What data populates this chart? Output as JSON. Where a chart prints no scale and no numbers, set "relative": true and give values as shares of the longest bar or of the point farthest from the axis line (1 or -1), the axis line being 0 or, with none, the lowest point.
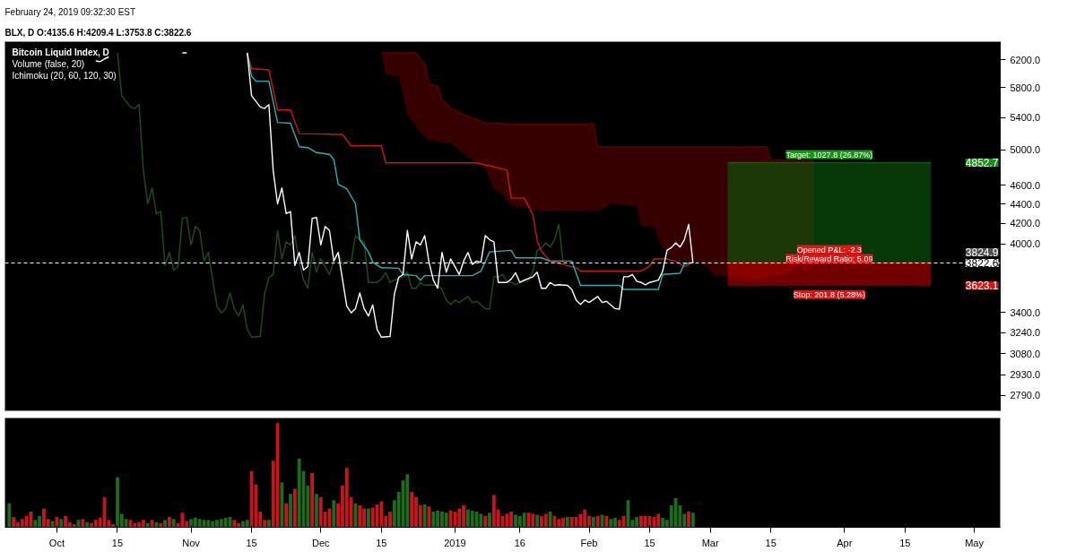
{
  "chart_data": [
    {
      "type": "line",
      "title": "Bitcoin Liquid Index, D",
      "subtitle": "BLX, D O:4135.6 H:4209.4 L:3753.8 C:3822.6",
      "annotations": [
        "February 24, 2019 09:32:30 EST",
        "Volume (false, 20)",
        "Ichimoku (20, 60, 120, 30)",
        "Target: 1027.8 (26.87%)",
        "Opened P&L: -2.3",
        "Risk/Reward Ratio: 5.09",
        "Stop: 201.8 (5.28%)",
        "4852.7",
        "3824.9",
        "3623.1"
      ],
      "xlim": [
        "2018-09-19",
        "2019-05-07"
      ],
      "ylim": [
        2690,
        6470
      ],
      "log": true,
      "tick_labels": "y",
      "yticks": [
        {
          "value": 2790,
          "label": "2790.0"
        },
        {
          "value": 2930,
          "label": "2930.0"
        },
        {
          "value": 3080,
          "label": "3080.0"
        },
        {
          "value": 3240,
          "label": "3240.0"
        },
        {
          "value": 3400,
          "label": "3400.0"
        },
        {
          "value": 4000,
          "label": "4000.0"
        },
        {
          "value": 4200,
          "label": "4200.0"
        },
        {
          "value": 4400,
          "label": "4400.0"
        },
        {
          "value": 4600,
          "label": "4600.0"
        },
        {
          "value": 5000,
          "label": "5000.0"
        },
        {
          "value": 5400,
          "label": "5400.0"
        },
        {
          "value": 5800,
          "label": "5800.0"
        },
        {
          "value": 6200,
          "label": "6200.0"
        }
      ],
      "ref_lines": [
        {
          "axis": "y",
          "value": 3822.6,
          "label": "3822.6",
          "color": "#ffffff",
          "line_style": "dashed"
        }
      ],
      "series": [
        {
          "type": "line",
          "color": "#5a0000",
          "upper": [
            6300,
            6300,
            6300,
            6300,
            6300,
            6200,
            6150,
            5850,
            5820,
            5640,
            5530,
            5440,
            5330,
            5330,
            5330,
            5320,
            5320,
            5320,
            5320,
            5040,
            5040,
            5040,
            5040,
            5040,
            5040,
            5040,
            5040,
            5040,
            5040,
            5040,
            5040,
            5040,
            5040,
            5040,
            4880,
            4880,
            4880,
            4880,
            4880
          ],
          "x": [
            "2018-12-15",
            "2018-12-16",
            "2018-12-19",
            "2018-12-21",
            "2018-12-23",
            "2018-12-24",
            "2018-12-25",
            "2018-12-26",
            "2018-12-28",
            "2018-12-29",
            "2018-12-31",
            "2019-01-03",
            "2019-01-08",
            "2019-01-10",
            "2019-01-12",
            "2019-01-14",
            "2019-01-18",
            "2019-01-21",
            "2019-02-02",
            "2019-02-03",
            "2019-02-05",
            "2019-02-06",
            "2019-02-12",
            "2019-02-13",
            "2019-02-16",
            "2019-02-18",
            "2019-02-20",
            "2019-02-22",
            "2019-02-26",
            "2019-02-28",
            "2019-03-02",
            "2019-03-06",
            "2019-03-12",
            "2019-03-14",
            "2019-03-15",
            "2019-03-18",
            "2019-03-21",
            "2019-03-24",
            "2019-03-25"
          ],
          "values": [
            6300,
            6300,
            6300,
            6300,
            6300,
            6200,
            6150,
            5850,
            5820,
            5640,
            5530,
            5440,
            5330,
            5330,
            5330,
            5320,
            5320,
            5320,
            5320,
            5040,
            5040,
            5040,
            5040,
            5040,
            5040,
            5040,
            5040,
            5040,
            5040,
            5040,
            5040,
            5040,
            5040,
            5040,
            4880,
            4880,
            4880,
            4880,
            4880
          ],
          "lower": [
            6300,
            5980,
            5960,
            5440,
            5300,
            5220,
            5160,
            5120,
            5100,
            5095,
            5090,
            4960,
            4780,
            4560,
            4500,
            4380,
            4360,
            4320,
            4330,
            4330,
            4360,
            4400,
            4380,
            4170,
            4170,
            3960,
            3870,
            3840,
            3840,
            3790,
            3710,
            3700,
            3680,
            3690,
            3710,
            3720,
            3790,
            3770,
            3800
          ]
        },
        {
          "type": "line",
          "color": "#0b5e0b",
          "x": [
            "2019-03-05",
            "2019-04-21"
          ],
          "values": [
            4852.7,
            4852.7
          ],
          "lower": [
            3822.6,
            3822.6
          ],
          "upper": [
            4852.7,
            4852.7
          ]
        },
        {
          "type": "line",
          "color": "#c00000",
          "x": [
            "2019-03-05",
            "2019-04-21"
          ],
          "values": [
            3822.6,
            3822.6
          ],
          "lower": [
            3623.1,
            3623.1
          ],
          "upper": [
            3822.6,
            3822.6
          ]
        },
        {
          "type": "line",
          "color": "#1f4f1f",
          "x": [
            "2018-10-15",
            "2018-10-16",
            "2018-10-18",
            "2018-10-19",
            "2018-10-20",
            "2018-10-21",
            "2018-10-22",
            "2018-10-23",
            "2018-10-24",
            "2018-10-25",
            "2018-10-26",
            "2018-10-27",
            "2018-10-28",
            "2018-10-29",
            "2018-10-30",
            "2018-10-31",
            "2018-11-01",
            "2018-11-02",
            "2018-11-03",
            "2018-11-04",
            "2018-11-05",
            "2018-11-07",
            "2018-11-08",
            "2018-11-09",
            "2018-11-10",
            "2018-11-11",
            "2018-11-12",
            "2018-11-13",
            "2018-11-14",
            "2018-11-15",
            "2018-11-17",
            "2018-11-18",
            "2018-11-19",
            "2018-11-20",
            "2018-11-21",
            "2018-11-22",
            "2018-11-23",
            "2018-11-24",
            "2018-11-25",
            "2018-11-26",
            "2018-11-27",
            "2018-11-28",
            "2018-11-29",
            "2018-11-30",
            "2018-12-01",
            "2018-12-03",
            "2018-12-04",
            "2018-12-05",
            "2018-12-06",
            "2018-12-07",
            "2018-12-08",
            "2018-12-09",
            "2018-12-10",
            "2018-12-11",
            "2018-12-12",
            "2018-12-14",
            "2018-12-15",
            "2018-12-16",
            "2018-12-17",
            "2018-12-18",
            "2018-12-20",
            "2018-12-21",
            "2018-12-22",
            "2018-12-23",
            "2018-12-24",
            "2018-12-25",
            "2018-12-26",
            "2018-12-28",
            "2018-12-29",
            "2018-12-30",
            "2018-12-31",
            "2019-01-01",
            "2019-01-02",
            "2019-01-04",
            "2019-01-05",
            "2019-01-06",
            "2019-01-08",
            "2019-01-09",
            "2019-01-10",
            "2019-01-11",
            "2019-01-12",
            "2019-01-13",
            "2019-01-14",
            "2019-01-15",
            "2019-01-16",
            "2019-01-18",
            "2019-01-19",
            "2019-01-20",
            "2019-01-21",
            "2019-01-22",
            "2019-01-23",
            "2019-01-24",
            "2019-01-25",
            "2019-01-26"
          ],
          "values": [
            6300,
            5690,
            5540,
            5520,
            5570,
            4760,
            4400,
            4570,
            4300,
            4320,
            3800,
            3920,
            3760,
            3790,
            4250,
            4260,
            3990,
            4170,
            4130,
            3840,
            3920,
            3450,
            3395,
            3430,
            3560,
            3430,
            3370,
            3460,
            3265,
            3205,
            3210,
            3550,
            3695,
            3720,
            4130,
            3860,
            4020,
            3990,
            4080,
            3830,
            3670,
            3600,
            3920,
            3740,
            3860,
            3720,
            3840,
            3920,
            3810,
            3840,
            3830,
            4080,
            4040,
            4020,
            3650,
            3650,
            3680,
            3735,
            3650,
            3670,
            3700,
            3740,
            3600,
            3600,
            3650,
            3625,
            3630,
            3625,
            3590,
            3500,
            3465,
            3500,
            3480,
            3530,
            3480,
            3490,
            3430,
            3425,
            3700,
            3700,
            3720,
            3660,
            3650,
            3630,
            3650,
            3670,
            3750,
            3940,
            3965,
            4010,
            3970,
            4040,
            4190,
            3823
          ]
        },
        {
          "type": "line",
          "color": "#c8161c",
          "x": [
            "2018-11-14",
            "2018-11-15",
            "2018-11-19",
            "2018-11-21",
            "2018-11-24",
            "2018-11-26",
            "2018-12-06",
            "2018-12-08",
            "2018-12-15",
            "2018-12-16",
            "2019-01-06",
            "2019-01-13",
            "2019-01-14",
            "2019-01-17",
            "2019-01-19",
            "2019-01-20",
            "2019-01-21",
            "2019-01-23",
            "2019-01-29",
            "2019-01-30",
            "2019-02-13",
            "2019-02-15",
            "2019-02-16",
            "2019-02-19",
            "2019-02-21",
            "2019-02-23",
            "2019-02-25"
          ],
          "values": [
            6300,
            6070,
            6050,
            5500,
            5500,
            5200,
            5190,
            5050,
            5050,
            4850,
            4850,
            4770,
            4460,
            4460,
            4290,
            4030,
            3930,
            3840,
            3780,
            3750,
            3750,
            3795,
            3860,
            3860,
            3840,
            3790,
            3830
          ]
        },
        {
          "type": "line",
          "color": "#2ab0b0",
          "x": [
            "2018-11-14",
            "2018-11-15",
            "2018-11-16",
            "2018-11-19",
            "2018-11-21",
            "2018-11-24",
            "2018-11-26",
            "2018-11-28",
            "2018-11-30",
            "2018-12-03",
            "2018-12-04",
            "2018-12-05",
            "2018-12-07",
            "2018-12-09",
            "2018-12-10",
            "2018-12-12",
            "2018-12-13",
            "2018-12-15",
            "2018-12-19",
            "2018-12-20",
            "2018-12-23",
            "2018-12-24",
            "2018-12-25",
            "2019-01-05",
            "2019-01-07",
            "2019-01-09",
            "2019-01-14",
            "2019-01-15",
            "2019-01-21",
            "2019-01-23",
            "2019-01-28",
            "2019-01-30",
            "2019-02-08",
            "2019-02-09",
            "2019-02-17",
            "2019-02-18",
            "2019-02-22",
            "2019-02-23",
            "2019-02-25"
          ],
          "values": [
            6300,
            5960,
            5890,
            5890,
            5340,
            5330,
            5040,
            5030,
            4970,
            4950,
            4890,
            4610,
            4560,
            4400,
            4040,
            3925,
            3830,
            3780,
            3775,
            3720,
            3710,
            3670,
            3710,
            3710,
            3750,
            3925,
            3940,
            3870,
            3870,
            3840,
            3840,
            3625,
            3625,
            3590,
            3590,
            3720,
            3730,
            3815,
            3830
          ]
        },
        {
          "type": "line",
          "color": "#ffffff",
          "x": [
            "2018-10-10",
            "2018-10-11",
            "2018-10-12",
            "2018-10-13"
          ],
          "values": [
            6180,
            6170,
            6210,
            6240
          ]
        },
        {
          "type": "line",
          "color": "#ffffff",
          "x": [
            "2018-10-30",
            "2018-10-31"
          ],
          "values": [
            6300,
            6300
          ]
        },
        {
          "type": "line",
          "color": "#ffffff",
          "x": [
            "2018-11-14",
            "2018-11-15",
            "2018-11-17",
            "2018-11-18",
            "2018-11-19",
            "2018-11-20",
            "2018-11-21",
            "2018-11-22",
            "2018-11-23",
            "2018-11-24",
            "2018-11-25",
            "2018-11-26",
            "2018-11-27",
            "2018-11-28",
            "2018-11-29",
            "2018-11-30",
            "2018-12-01",
            "2018-12-02",
            "2018-12-03",
            "2018-12-04",
            "2018-12-05",
            "2018-12-07",
            "2018-12-08",
            "2018-12-09",
            "2018-12-10",
            "2018-12-11",
            "2018-12-12",
            "2018-12-13",
            "2018-12-14",
            "2018-12-15",
            "2018-12-17",
            "2018-12-18",
            "2018-12-19",
            "2018-12-20",
            "2018-12-21",
            "2018-12-22",
            "2018-12-23",
            "2018-12-24",
            "2018-12-25",
            "2018-12-26",
            "2018-12-27",
            "2018-12-28",
            "2018-12-29",
            "2018-12-30",
            "2018-12-31",
            "2019-01-02",
            "2019-01-03",
            "2019-01-04",
            "2019-01-05",
            "2019-01-06",
            "2019-01-07",
            "2019-01-08",
            "2019-01-09",
            "2019-01-10",
            "2019-01-11",
            "2019-01-13",
            "2019-01-14",
            "2019-01-15",
            "2019-01-16",
            "2019-01-17",
            "2019-01-19",
            "2019-01-20",
            "2019-01-21",
            "2019-01-22",
            "2019-01-23",
            "2019-01-24",
            "2019-01-25",
            "2019-01-27",
            "2019-01-28",
            "2019-01-29",
            "2019-01-30",
            "2019-01-31",
            "2019-02-01",
            "2019-02-03",
            "2019-02-04",
            "2019-02-05",
            "2019-02-07",
            "2019-02-08",
            "2019-02-09",
            "2019-02-10",
            "2019-02-11",
            "2019-02-12",
            "2019-02-13",
            "2019-02-14",
            "2019-02-15",
            "2019-02-17",
            "2019-02-18",
            "2019-02-19",
            "2019-02-20",
            "2019-02-21",
            "2019-02-22",
            "2019-02-23",
            "2019-02-24",
            "2019-02-25"
          ],
          "values": [
            6300,
            5690,
            5540,
            5520,
            5570,
            4760,
            4400,
            4570,
            4300,
            4320,
            3800,
            3920,
            3760,
            3790,
            4250,
            4260,
            3990,
            4170,
            4130,
            3840,
            3920,
            3450,
            3395,
            3430,
            3560,
            3430,
            3370,
            3460,
            3265,
            3205,
            3210,
            3550,
            3695,
            3720,
            4130,
            3860,
            4020,
            3990,
            4080,
            3830,
            3670,
            3600,
            3920,
            3740,
            3860,
            3720,
            3840,
            3920,
            3810,
            3840,
            3830,
            4080,
            4040,
            4020,
            3650,
            3650,
            3680,
            3735,
            3650,
            3670,
            3700,
            3740,
            3600,
            3600,
            3650,
            3625,
            3630,
            3625,
            3590,
            3500,
            3465,
            3500,
            3480,
            3530,
            3480,
            3490,
            3430,
            3425,
            3700,
            3700,
            3720,
            3660,
            3650,
            3630,
            3650,
            3670,
            3750,
            3940,
            3965,
            4010,
            3970,
            4040,
            4190,
            3823
          ]
        }
      ]
    },
    {
      "type": "bar",
      "relative": true,
      "tick_labels": "x",
      "xlim": [
        "2018-09-19",
        "2019-05-07"
      ],
      "xticks": [
        {
          "value": "2018-10-01",
          "label": "Oct"
        },
        {
          "value": "2018-10-15",
          "label": "15"
        },
        {
          "value": "2018-11-01",
          "label": "Nov"
        },
        {
          "value": "2018-11-15",
          "label": "15"
        },
        {
          "value": "2018-12-01",
          "label": "Dec"
        },
        {
          "value": "2018-12-15",
          "label": "15"
        },
        {
          "value": "2019-01-01",
          "label": "2019"
        },
        {
          "value": "2019-01-16",
          "label": "16"
        },
        {
          "value": "2019-02-01",
          "label": "Feb"
        },
        {
          "value": "2019-02-15",
          "label": "15"
        },
        {
          "value": "2019-03-01",
          "label": "Mar"
        },
        {
          "value": "2019-03-15",
          "label": "15"
        },
        {
          "value": "2019-04-01",
          "label": "Apr"
        },
        {
          "value": "2019-04-15",
          "label": "15"
        },
        {
          "value": "2019-05-01",
          "label": "May"
        }
      ],
      "x": [
        "2018-09-20",
        "2018-09-21",
        "2018-09-22",
        "2018-09-23",
        "2018-09-24",
        "2018-09-25",
        "2018-09-26",
        "2018-09-27",
        "2018-09-28",
        "2018-09-29",
        "2018-09-30",
        "2018-10-01",
        "2018-10-02",
        "2018-10-03",
        "2018-10-04",
        "2018-10-05",
        "2018-10-06",
        "2018-10-07",
        "2018-10-08",
        "2018-10-09",
        "2018-10-10",
        "2018-10-11",
        "2018-10-12",
        "2018-10-13",
        "2018-10-14",
        "2018-10-15",
        "2018-10-16",
        "2018-10-17",
        "2018-10-18",
        "2018-10-19",
        "2018-10-20",
        "2018-10-21",
        "2018-10-22",
        "2018-10-23",
        "2018-10-24",
        "2018-10-25",
        "2018-10-26",
        "2018-10-27",
        "2018-10-28",
        "2018-10-29",
        "2018-10-30",
        "2018-10-31",
        "2018-11-01",
        "2018-11-02",
        "2018-11-03",
        "2018-11-04",
        "2018-11-05",
        "2018-11-06",
        "2018-11-07",
        "2018-11-08",
        "2018-11-09",
        "2018-11-10",
        "2018-11-11",
        "2018-11-12",
        "2018-11-13",
        "2018-11-14",
        "2018-11-15",
        "2018-11-16",
        "2018-11-17",
        "2018-11-18",
        "2018-11-19",
        "2018-11-20",
        "2018-11-21",
        "2018-11-22",
        "2018-11-23",
        "2018-11-24",
        "2018-11-25",
        "2018-11-26",
        "2018-11-27",
        "2018-11-28",
        "2018-11-29",
        "2018-11-30",
        "2018-12-01",
        "2018-12-02",
        "2018-12-03",
        "2018-12-04",
        "2018-12-05",
        "2018-12-06",
        "2018-12-07",
        "2018-12-08",
        "2018-12-09",
        "2018-12-10",
        "2018-12-11",
        "2018-12-12",
        "2018-12-13",
        "2018-12-14",
        "2018-12-15",
        "2018-12-16",
        "2018-12-17",
        "2018-12-18",
        "2018-12-19",
        "2018-12-20",
        "2018-12-21",
        "2018-12-22",
        "2018-12-23",
        "2018-12-24",
        "2018-12-25",
        "2018-12-26",
        "2018-12-27",
        "2018-12-28",
        "2018-12-29",
        "2018-12-30",
        "2018-12-31",
        "2019-01-01",
        "2019-01-02",
        "2019-01-03",
        "2019-01-04",
        "2019-01-05",
        "2019-01-06",
        "2019-01-07",
        "2019-01-08",
        "2019-01-09",
        "2019-01-10",
        "2019-01-11",
        "2019-01-12",
        "2019-01-13",
        "2019-01-14",
        "2019-01-15",
        "2019-01-16",
        "2019-01-17",
        "2019-01-18",
        "2019-01-19",
        "2019-01-20",
        "2019-01-21",
        "2019-01-22",
        "2019-01-23",
        "2019-01-24",
        "2019-01-25",
        "2019-01-26",
        "2019-01-27",
        "2019-01-28",
        "2019-01-29",
        "2019-01-30",
        "2019-01-31",
        "2019-02-01",
        "2019-02-02",
        "2019-02-03",
        "2019-02-04",
        "2019-02-05",
        "2019-02-06",
        "2019-02-07",
        "2019-02-08",
        "2019-02-09",
        "2019-02-10",
        "2019-02-11",
        "2019-02-12",
        "2019-02-13",
        "2019-02-14",
        "2019-02-15",
        "2019-02-16",
        "2019-02-17",
        "2019-02-18",
        "2019-02-19",
        "2019-02-20",
        "2019-02-21",
        "2019-02-22",
        "2019-02-23",
        "2019-02-24",
        "2019-02-25"
      ],
      "values": [
        0.23,
        0.1,
        0.05,
        0.08,
        0.11,
        0.15,
        0.07,
        0.11,
        0.18,
        0.08,
        0.06,
        0.1,
        0.08,
        0.11,
        0.05,
        0.03,
        0.07,
        0.08,
        0.05,
        0.04,
        0.07,
        0.09,
        0.29,
        0.07,
        0.03,
        0.48,
        0.13,
        0.08,
        0.07,
        0.04,
        0.05,
        0.07,
        0.04,
        0.07,
        0.05,
        0.04,
        0.07,
        0.1,
        0.08,
        0.04,
        0.14,
        0.06,
        0.08,
        0.09,
        0.08,
        0.07,
        0.07,
        0.06,
        0.07,
        0.08,
        0.09,
        0.1,
        0.07,
        0.04,
        0.06,
        0.07,
        0.54,
        0.41,
        0.15,
        0.07,
        0.07,
        0.64,
        1,
        0.43,
        0.23,
        0.32,
        0.37,
        0.66,
        0.54,
        0.4,
        0.52,
        0.32,
        0.29,
        0.15,
        0.18,
        0.26,
        0.23,
        0.4,
        0.57,
        0.29,
        0.23,
        0.21,
        0.18,
        0.18,
        0.19,
        0.22,
        0.25,
        0.11,
        0.15,
        0.26,
        0.34,
        0.45,
        0.51,
        0.34,
        0.29,
        0.21,
        0.22,
        0.2,
        0.15,
        0.16,
        0.15,
        0.14,
        0.16,
        0.15,
        0.18,
        0.21,
        0.17,
        0.16,
        0.15,
        0.13,
        0.11,
        0.14,
        0.31,
        0.17,
        0.11,
        0.13,
        0.15,
        0.12,
        0.11,
        0.14,
        0.14,
        0.13,
        0.12,
        0.11,
        0.13,
        0.15,
        0.11,
        0.08,
        0.09,
        0.1,
        0.1,
        0.1,
        0.13,
        0.17,
        0.11,
        0.1,
        0.11,
        0.12,
        0.11,
        0.08,
        0.09,
        0.07,
        0.11,
        0.26,
        0.07,
        0.1,
        0.11,
        0.11,
        0.11,
        0.1,
        0.13,
        0.09,
        0.07,
        0.21,
        0.28,
        0.21,
        0.13,
        0.15,
        0.14
      ],
      "colors": [
        "#1e6b1e",
        "#c0181c",
        "#c0181c",
        "#c0181c",
        "#c0181c",
        "#c0181c",
        "#1e6b1e",
        "#1e6b1e",
        "#c0181c",
        "#c0181c",
        "#1e6b1e",
        "#c0181c",
        "#1e6b1e",
        "#c0181c",
        "#c0181c",
        "#c0181c",
        "#1e6b1e",
        "#c0181c",
        "#1e6b1e",
        "#c0181c",
        "#c0181c",
        "#c0181c",
        "#c0181c",
        "#c0181c",
        "#c0181c",
        "#1e6b1e",
        "#1e6b1e",
        "#1e6b1e",
        "#c0181c",
        "#c0181c",
        "#c0181c",
        "#c0181c",
        "#1e6b1e",
        "#c0181c",
        "#1e6b1e",
        "#c0181c",
        "#1e6b1e",
        "#c0181c",
        "#1e6b1e",
        "#c0181c",
        "#c0181c",
        "#c0181c",
        "#1e6b1e",
        "#1e6b1e",
        "#1e6b1e",
        "#1e6b1e",
        "#1e6b1e",
        "#1e6b1e",
        "#1e6b1e",
        "#1e6b1e",
        "#1e6b1e",
        "#1e6b1e",
        "#c0181c",
        "#c0181c",
        "#1e6b1e",
        "#1e6b1e",
        "#c0181c",
        "#c0181c",
        "#c0181c",
        "#c0181c",
        "#1e6b1e",
        "#c0181c",
        "#c0181c",
        "#1e6b1e",
        "#c0181c",
        "#1e6b1e",
        "#c0181c",
        "#1e6b1e",
        "#1e6b1e",
        "#1e6b1e",
        "#c0181c",
        "#1e6b1e",
        "#c0181c",
        "#c0181c",
        "#c0181c",
        "#1e6b1e",
        "#c0181c",
        "#c0181c",
        "#c0181c",
        "#c0181c",
        "#1e6b1e",
        "#c0181c",
        "#c0181c",
        "#1e6b1e",
        "#c0181c",
        "#c0181c",
        "#c0181c",
        "#c0181c",
        "#c0181c",
        "#1e6b1e",
        "#1e6b1e",
        "#1e6b1e",
        "#1e6b1e",
        "#c0181c",
        "#c0181c",
        "#c0181c",
        "#1e6b1e",
        "#c0181c",
        "#1e6b1e",
        "#1e6b1e",
        "#1e6b1e",
        "#1e6b1e",
        "#c0181c",
        "#c0181c",
        "#c0181c",
        "#c0181c",
        "#1e6b1e",
        "#1e6b1e",
        "#1e6b1e",
        "#1e6b1e",
        "#c0181c",
        "#1e6b1e",
        "#c0181c",
        "#c0181c",
        "#c0181c",
        "#c0181c",
        "#c0181c",
        "#1e6b1e",
        "#1e6b1e",
        "#1e6b1e",
        "#c0181c",
        "#c0181c",
        "#1e6b1e",
        "#c0181c",
        "#c0181c",
        "#1e6b1e",
        "#c0181c",
        "#c0181c",
        "#c0181c",
        "#1e6b1e",
        "#c0181c",
        "#c0181c",
        "#c0181c",
        "#c0181c",
        "#c0181c",
        "#1e6b1e",
        "#c0181c",
        "#1e6b1e",
        "#c0181c",
        "#1e6b1e",
        "#1e6b1e",
        "#c0181c",
        "#c0181c",
        "#1e6b1e",
        "#1e6b1e",
        "#1e6b1e",
        "#c0181c",
        "#c0181c",
        "#c0181c",
        "#c0181c",
        "#c0181c",
        "#1e6b1e",
        "#1e6b1e",
        "#1e6b1e",
        "#1e6b1e",
        "#1e6b1e",
        "#1e6b1e",
        "#c0181c",
        "#1e6b1e"
      ]
    }
  ]
}
